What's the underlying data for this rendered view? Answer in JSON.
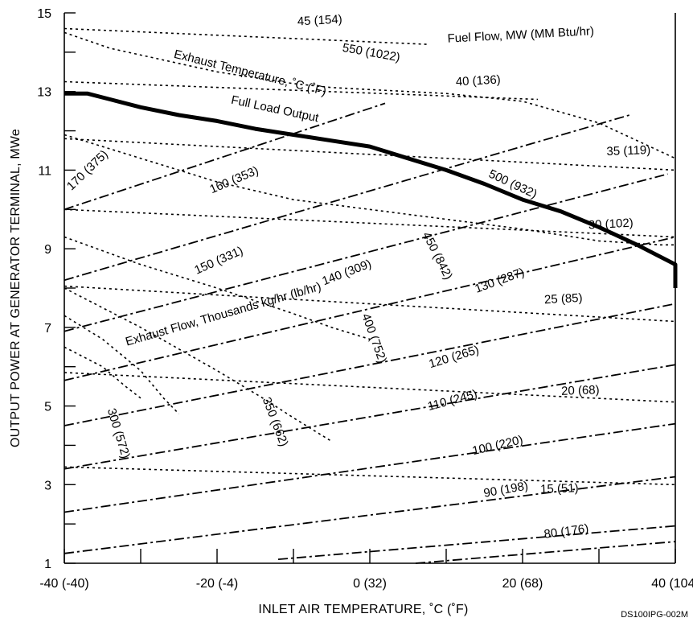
{
  "chart_data": {
    "type": "line",
    "title": "",
    "xlabel": "INLET AIR TEMPERATURE, ˚C (˚F)",
    "ylabel": "OUTPUT POWER AT GENERATOR TERMINAL, MWe",
    "xlim": [
      -40,
      40
    ],
    "ylim": [
      1,
      15
    ],
    "x_ticks": [
      -40,
      -20,
      0,
      20,
      40
    ],
    "x_tick_labels": [
      "-40 (-40)",
      "-20 (-4)",
      "0 (32)",
      "20 (68)",
      "40 (104)"
    ],
    "y_ticks": [
      1,
      3,
      5,
      7,
      9,
      11,
      13,
      15
    ],
    "y_tick_labels": [
      "1",
      "3",
      "5",
      "7",
      "9",
      "11",
      "13",
      "15"
    ],
    "grid": false,
    "figure_code": "DS100IPG-002M",
    "group_labels": {
      "fuel_flow": "Fuel Flow, MW (MM Btu/hr)",
      "exhaust_temperature": "Exhaust Temperature, ˚C (˚F)",
      "full_load": "Full Load Output",
      "exhaust_flow": "Exhaust Flow, Thousands kg/hr (lb/hr)"
    },
    "full_load_output": {
      "name": "Full Load Output",
      "x": [
        -40,
        -37,
        -34,
        -30,
        -25,
        -20,
        -15,
        -10,
        -5,
        0,
        5,
        10,
        15,
        20,
        25,
        30,
        35,
        40,
        45
      ],
      "y": [
        12.95,
        12.95,
        12.8,
        12.6,
        12.4,
        12.25,
        12.05,
        11.9,
        11.75,
        11.6,
        11.3,
        11.0,
        10.65,
        10.25,
        9.95,
        9.55,
        9.1,
        8.6,
        8.0
      ]
    },
    "fuel_flow": [
      {
        "label": "45 (154)",
        "x": [
          -40,
          7.5
        ],
        "y": [
          14.6,
          14.2
        ]
      },
      {
        "label": "40 (136)",
        "x": [
          -40,
          22
        ],
        "y": [
          13.25,
          12.8
        ]
      },
      {
        "label": "35 (119)",
        "x": [
          -40,
          41
        ],
        "y": [
          11.8,
          11.0
        ]
      },
      {
        "label": "30 (102)",
        "x": [
          -40,
          42
        ],
        "y": [
          10.0,
          9.3
        ]
      },
      {
        "label": "25 (85)",
        "x": [
          -40,
          42
        ],
        "y": [
          8.05,
          7.15
        ]
      },
      {
        "label": "20 (68)",
        "x": [
          -40,
          42
        ],
        "y": [
          5.85,
          5.1
        ]
      },
      {
        "label": "15 (51)",
        "x": [
          -40,
          42
        ],
        "y": [
          3.45,
          3.0
        ]
      }
    ],
    "exhaust_temperature": [
      {
        "label": "550 (1022)",
        "x": [
          -40,
          -34,
          -20,
          -10,
          -5,
          0,
          10,
          20,
          30,
          41
        ],
        "y": [
          14.5,
          14.1,
          13.5,
          13.2,
          13.1,
          13.05,
          12.95,
          12.75,
          12.2,
          11.3
        ]
      },
      {
        "label": "500 (932)",
        "x": [
          -40,
          -30,
          -20,
          -10,
          0,
          10,
          20,
          30,
          38,
          46
        ],
        "y": [
          11.9,
          11.3,
          10.7,
          10.25,
          10.0,
          9.75,
          9.5,
          9.2,
          9.1,
          9.1
        ]
      },
      {
        "label": "450 (842)",
        "x": [
          -40,
          -30,
          -20,
          -10,
          -5,
          0
        ],
        "y": [
          9.3,
          8.6,
          8.0,
          7.35,
          7.0,
          6.7
        ]
      },
      {
        "label": "400 (752)",
        "x": [
          -40,
          -30,
          -20,
          -14,
          -10,
          -5
        ],
        "y": [
          8.0,
          7.0,
          5.9,
          5.2,
          4.7,
          4.1
        ]
      },
      {
        "label": "350 (662)",
        "x": [
          -40,
          -35,
          -30,
          -27,
          -25
        ],
        "y": [
          7.3,
          6.7,
          5.9,
          5.2,
          4.8
        ]
      },
      {
        "label": "300 (572)",
        "x": [
          -40,
          -35,
          -32,
          -30
        ],
        "y": [
          6.5,
          6.0,
          5.5,
          5.2
        ]
      }
    ],
    "exhaust_flow": [
      {
        "label": "170 (375)",
        "x": [
          -40,
          2
        ],
        "y": [
          10.0,
          12.7
        ]
      },
      {
        "label": "160 (353)",
        "x": [
          -40,
          34
        ],
        "y": [
          8.2,
          12.4
        ]
      },
      {
        "label": "150 (331)",
        "x": [
          -40,
          39
        ],
        "y": [
          6.9,
          10.9
        ]
      },
      {
        "label": "140 (309)",
        "x": [
          -40,
          40
        ],
        "y": [
          5.65,
          9.3
        ]
      },
      {
        "label": "130 (287)",
        "x": [
          -40,
          40
        ],
        "y": [
          4.5,
          7.6
        ]
      },
      {
        "label": "120 (265)",
        "x": [
          -40,
          40
        ],
        "y": [
          3.4,
          6.05
        ]
      },
      {
        "label": "110 (245)",
        "x": [
          -40,
          40
        ],
        "y": [
          2.3,
          4.55
        ]
      },
      {
        "label": "100 (220)",
        "x": [
          -40,
          40
        ],
        "y": [
          1.25,
          3.2
        ]
      },
      {
        "label": "90 (198)",
        "x": [
          -12,
          40
        ],
        "y": [
          1.1,
          1.95
        ]
      },
      {
        "label": "80 (176)",
        "x": [
          6,
          40
        ],
        "y": [
          1.0,
          1.55
        ]
      }
    ]
  }
}
